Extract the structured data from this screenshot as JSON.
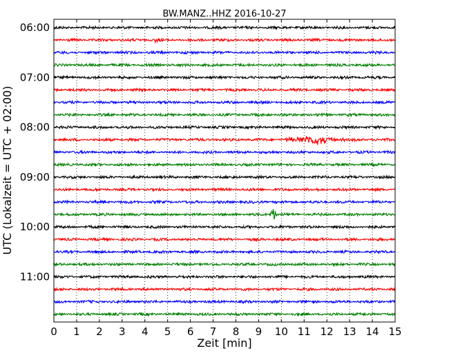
{
  "chart_data": {
    "type": "line",
    "chart_kind": "seismic-helicorder",
    "title": "BW.MANZ..HHZ 2016-10-27",
    "xlabel": "Zeit  [min]",
    "ylabel": "UTC (Lokalzeit = UTC + 02:00)",
    "xlim": [
      0,
      15
    ],
    "x_ticks": [
      0,
      1,
      2,
      3,
      4,
      5,
      6,
      7,
      8,
      9,
      10,
      11,
      12,
      13,
      14,
      15
    ],
    "x_tick_labels": [
      "0",
      "1",
      "2",
      "3",
      "4",
      "5",
      "6",
      "7",
      "8",
      "9",
      "10",
      "11",
      "12",
      "13",
      "14",
      "15"
    ],
    "y_tick_labels": [
      "06:00",
      "07:00",
      "08:00",
      "09:00",
      "10:00",
      "11:00"
    ],
    "y_tick_traces": [
      0,
      4,
      8,
      12,
      16,
      20
    ],
    "grid": "vertical-dotted",
    "color_cycle": [
      "#000000",
      "#ff0000",
      "#0000ff",
      "#008000"
    ],
    "trace_count": 24,
    "trace_minutes_each": 15,
    "events": [
      {
        "trace": 9,
        "x_min": 10.1,
        "x_max": 12.8,
        "amplitude": 0.55
      },
      {
        "trace": 15,
        "x_min": 9.5,
        "x_max": 9.8,
        "amplitude": 0.8
      },
      {
        "trace": 1,
        "x_min": 4.3,
        "x_max": 4.6,
        "amplitude": 0.35
      }
    ]
  }
}
